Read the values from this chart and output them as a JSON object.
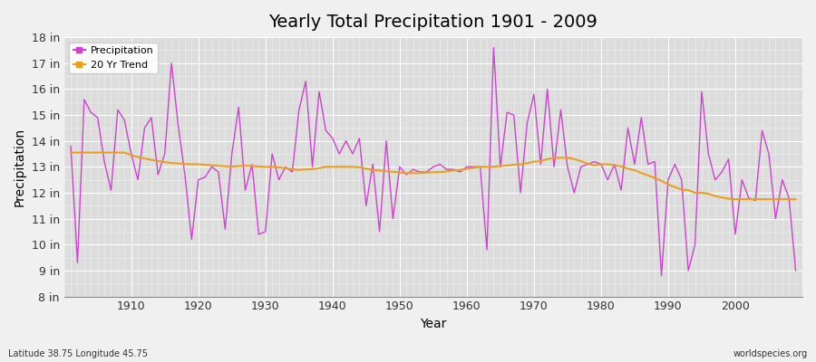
{
  "title": "Yearly Total Precipitation 1901 - 2009",
  "xlabel": "Year",
  "ylabel": "Precipitation",
  "bg_color": "#f0f0f0",
  "plot_bg_color": "#dcdcdc",
  "precip_color": "#cc44cc",
  "trend_color": "#e8a020",
  "precip_linewidth": 1.0,
  "trend_linewidth": 1.5,
  "years": [
    1901,
    1902,
    1903,
    1904,
    1905,
    1906,
    1907,
    1908,
    1909,
    1910,
    1911,
    1912,
    1913,
    1914,
    1915,
    1916,
    1917,
    1918,
    1919,
    1920,
    1921,
    1922,
    1923,
    1924,
    1925,
    1926,
    1927,
    1928,
    1929,
    1930,
    1931,
    1932,
    1933,
    1934,
    1935,
    1936,
    1937,
    1938,
    1939,
    1940,
    1941,
    1942,
    1943,
    1944,
    1945,
    1946,
    1947,
    1948,
    1949,
    1950,
    1951,
    1952,
    1953,
    1954,
    1955,
    1956,
    1957,
    1958,
    1959,
    1960,
    1961,
    1962,
    1963,
    1964,
    1965,
    1966,
    1967,
    1968,
    1969,
    1970,
    1971,
    1972,
    1973,
    1974,
    1975,
    1976,
    1977,
    1978,
    1979,
    1980,
    1981,
    1982,
    1983,
    1984,
    1985,
    1986,
    1987,
    1988,
    1989,
    1990,
    1991,
    1992,
    1993,
    1994,
    1995,
    1996,
    1997,
    1998,
    1999,
    2000,
    2001,
    2002,
    2003,
    2004,
    2005,
    2006,
    2007,
    2008,
    2009
  ],
  "precip": [
    13.8,
    9.3,
    15.6,
    15.1,
    14.9,
    13.2,
    12.1,
    15.2,
    14.8,
    13.5,
    12.5,
    14.5,
    14.9,
    12.7,
    13.5,
    17.0,
    14.6,
    12.7,
    10.2,
    12.5,
    12.6,
    13.0,
    12.8,
    10.6,
    13.5,
    15.3,
    12.1,
    13.1,
    10.4,
    10.5,
    13.5,
    12.5,
    13.0,
    12.8,
    15.2,
    16.3,
    13.0,
    15.9,
    14.4,
    14.1,
    13.5,
    14.0,
    13.5,
    14.1,
    11.5,
    13.1,
    10.5,
    14.0,
    11.0,
    13.0,
    12.7,
    12.9,
    12.8,
    12.8,
    13.0,
    13.1,
    12.9,
    12.9,
    12.8,
    13.0,
    13.0,
    13.0,
    9.8,
    17.6,
    13.0,
    15.1,
    15.0,
    12.0,
    14.7,
    15.8,
    13.1,
    16.0,
    13.0,
    15.2,
    13.0,
    12.0,
    13.0,
    13.1,
    13.2,
    13.1,
    12.5,
    13.1,
    12.1,
    14.5,
    13.1,
    14.9,
    13.1,
    13.2,
    8.8,
    12.5,
    13.1,
    12.5,
    9.0,
    10.0,
    15.9,
    13.5,
    12.5,
    12.8,
    13.3,
    10.4,
    12.5,
    11.8,
    11.7,
    14.4,
    13.5,
    11.0,
    12.5,
    11.8,
    9.0
  ],
  "trend": [
    13.55,
    13.55,
    13.55,
    13.55,
    13.55,
    13.55,
    13.55,
    13.55,
    13.55,
    13.45,
    13.38,
    13.32,
    13.27,
    13.22,
    13.18,
    13.15,
    13.13,
    13.11,
    13.1,
    13.1,
    13.08,
    13.06,
    13.04,
    13.02,
    13.01,
    13.03,
    13.04,
    13.03,
    13.01,
    13.0,
    13.0,
    12.98,
    12.95,
    12.9,
    12.88,
    12.9,
    12.91,
    12.95,
    13.0,
    13.0,
    13.0,
    13.0,
    13.0,
    12.98,
    12.93,
    12.88,
    12.86,
    12.83,
    12.81,
    12.78,
    12.76,
    12.76,
    12.76,
    12.78,
    12.79,
    12.8,
    12.82,
    12.86,
    12.88,
    12.92,
    12.96,
    13.0,
    13.0,
    13.0,
    13.03,
    13.05,
    13.08,
    13.1,
    13.14,
    13.2,
    13.22,
    13.3,
    13.33,
    13.35,
    13.35,
    13.3,
    13.22,
    13.12,
    13.06,
    13.1,
    13.1,
    13.06,
    13.02,
    12.93,
    12.87,
    12.76,
    12.67,
    12.57,
    12.46,
    12.32,
    12.22,
    12.12,
    12.1,
    12.0,
    12.0,
    11.96,
    11.87,
    11.82,
    11.77,
    11.75,
    11.75,
    11.75,
    11.75,
    11.75,
    11.75,
    11.75,
    11.75,
    11.75,
    11.75
  ],
  "ylim": [
    8,
    18
  ],
  "yticks": [
    8,
    9,
    10,
    11,
    12,
    13,
    14,
    15,
    16,
    17,
    18
  ],
  "ytick_labels": [
    "8 in",
    "9 in",
    "10 in",
    "11 in",
    "12 in",
    "13 in",
    "14 in",
    "15 in",
    "16 in",
    "17 in",
    "18 in"
  ],
  "xlim_left": 1900,
  "xlim_right": 2010,
  "xticks": [
    1910,
    1920,
    1930,
    1940,
    1950,
    1960,
    1970,
    1980,
    1990,
    2000
  ],
  "grid_color": "#ffffff",
  "grid_minor_color": "#ffffff",
  "footnote_left": "Latitude 38.75 Longitude 45.75",
  "footnote_right": "worldspecies.org",
  "title_fontsize": 14,
  "axis_fontsize": 9,
  "label_fontsize": 10
}
